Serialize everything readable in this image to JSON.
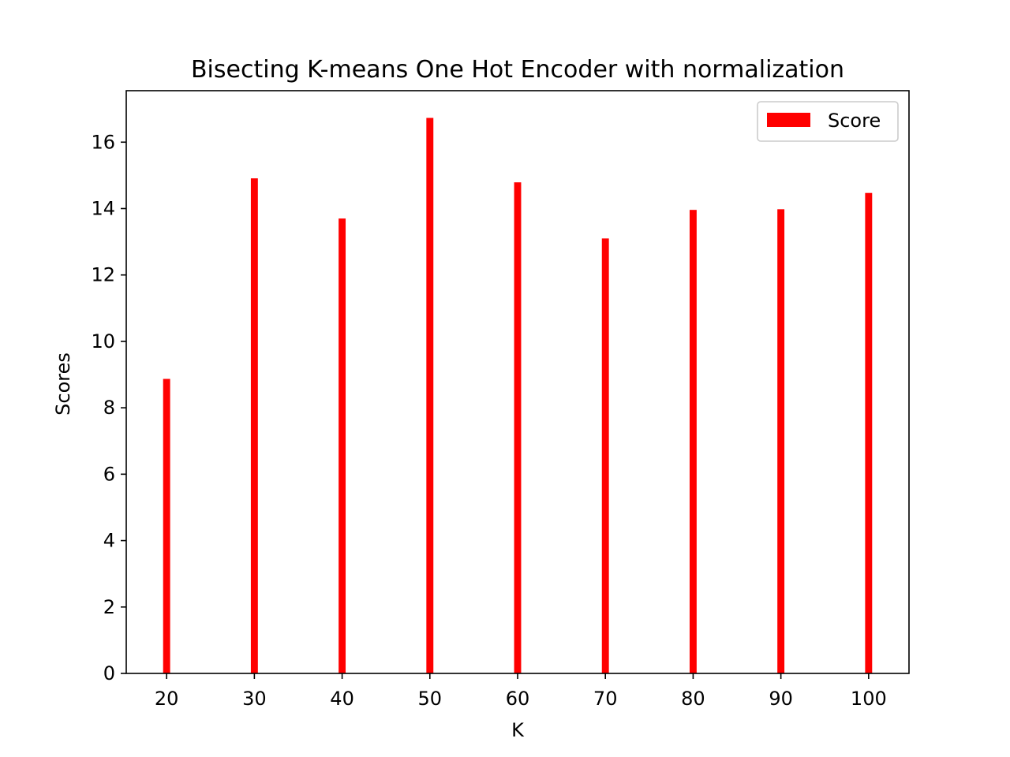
{
  "chart_data": {
    "type": "bar",
    "title": "Bisecting K-means One Hot Encoder with normalization",
    "xlabel": "K",
    "ylabel": "Scores",
    "x": [
      20,
      30,
      40,
      50,
      60,
      70,
      80,
      90,
      100
    ],
    "xlim": [
      15.4,
      104.6
    ],
    "ylim": [
      0,
      17.55
    ],
    "xticks": [
      "20",
      "30",
      "40",
      "50",
      "60",
      "70",
      "80",
      "90",
      "100"
    ],
    "yticks": [
      "0",
      "2",
      "4",
      "6",
      "8",
      "10",
      "12",
      "14",
      "16"
    ],
    "bar_width": 0.8,
    "series": [
      {
        "name": "Score",
        "color": "#ff0000",
        "values": [
          8.87,
          14.91,
          13.7,
          16.73,
          14.79,
          13.1,
          13.96,
          13.98,
          14.47
        ]
      }
    ],
    "legend_position": "top-right",
    "grid": false
  }
}
